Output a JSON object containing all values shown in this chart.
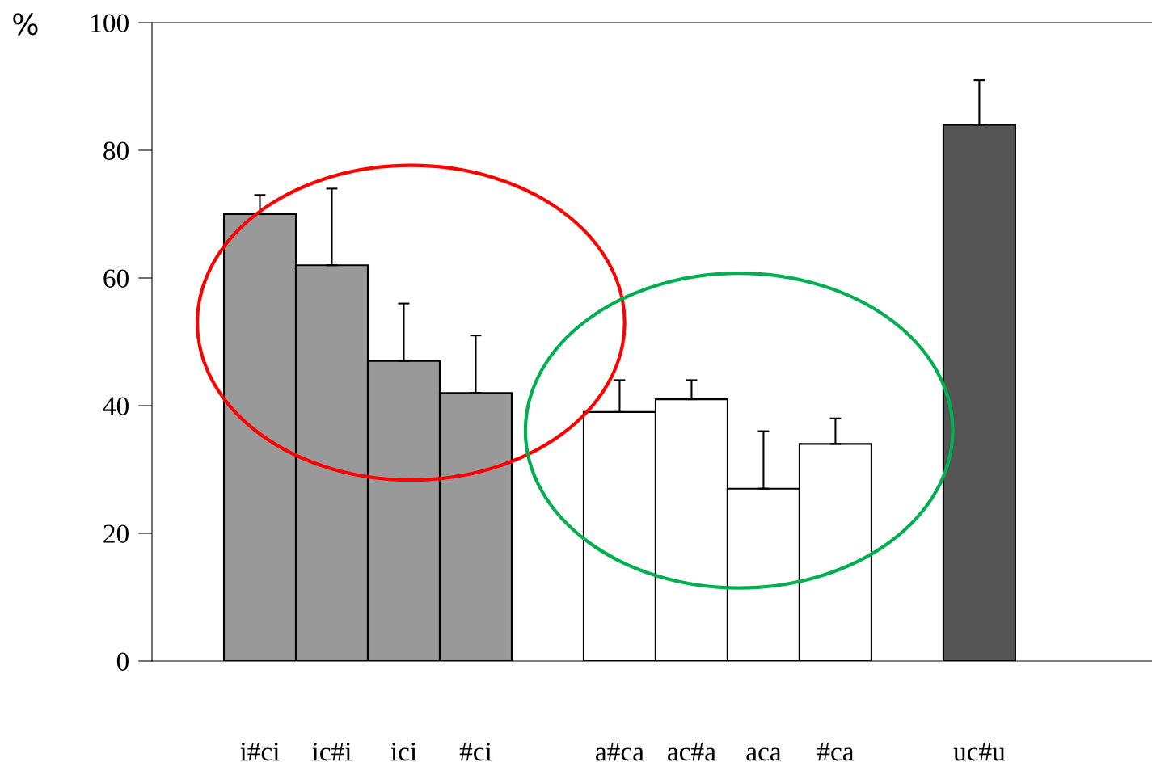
{
  "chart_data": {
    "type": "bar",
    "ylabel": "%",
    "categories": [
      null,
      "i#ci",
      "ic#i",
      "ici",
      "#ci",
      null,
      "a#ca",
      "ac#a",
      "aca",
      "#ca",
      null,
      "uc#u",
      null,
      null
    ],
    "values": [
      null,
      70,
      62,
      47,
      42,
      null,
      39,
      41,
      27,
      34,
      null,
      84,
      null,
      null
    ],
    "colors": [
      null,
      "#999999",
      "#999999",
      "#999999",
      "#999999",
      null,
      "#ffffff",
      "#ffffff",
      "#ffffff",
      "#ffffff",
      null,
      "#555555",
      null,
      null
    ],
    "errors": [
      null,
      [
        70,
        73
      ],
      [
        62,
        74
      ],
      [
        47,
        56
      ],
      [
        42,
        51
      ],
      null,
      [
        39,
        44
      ],
      [
        41,
        44
      ],
      [
        27,
        36
      ],
      [
        34,
        38
      ],
      null,
      [
        84,
        91
      ],
      null,
      null
    ],
    "ylim": [
      0,
      100
    ],
    "yticks": [
      0,
      20,
      40,
      60,
      80,
      100
    ],
    "grid": false
  }
}
